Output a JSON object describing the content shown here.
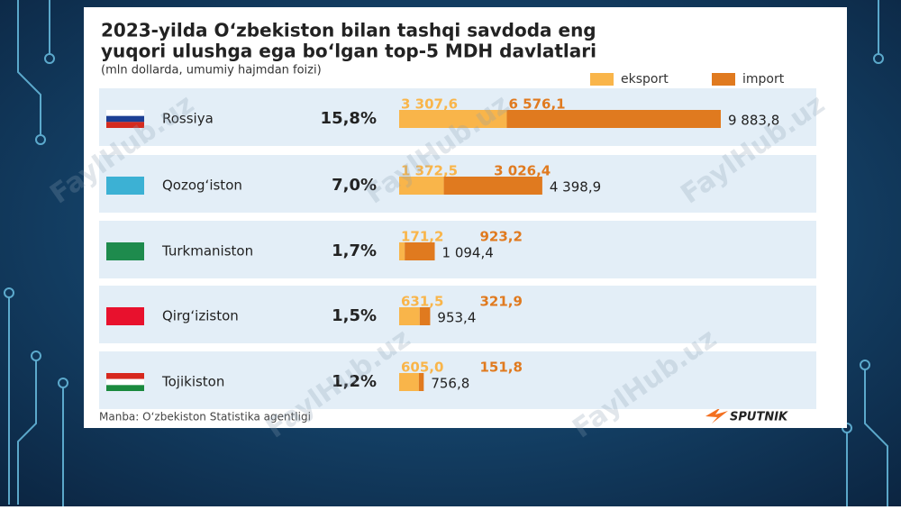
{
  "chart_data": {
    "type": "stacked-bar-horizontal",
    "title_lines": [
      "2023-yilda O‘zbekiston bilan tashqi savdoda eng",
      "yuqori ulushga ega bo‘lgan top-5 MDH davlatlari"
    ],
    "subtitle": "(mln dollarda, umumiy hajmdan foizi)",
    "categories": [
      "Rossiya",
      "Qozog‘iston",
      "Turkmaniston",
      "Qirg‘iziston",
      "Tojikiston"
    ],
    "share_labels": [
      "15,8%",
      "7,0%",
      "1,7%",
      "1,5%",
      "1,2%"
    ],
    "series": [
      {
        "name": "eksport",
        "color": "#f9b54a",
        "values": [
          3307.6,
          1372.5,
          171.2,
          631.5,
          605.0
        ],
        "value_labels": [
          "3 307,6",
          "1 372,5",
          "171,2",
          "631,5",
          "605,0"
        ]
      },
      {
        "name": "import",
        "color": "#e07a1f",
        "values": [
          6576.1,
          3026.4,
          923.2,
          321.9,
          151.8
        ],
        "value_labels": [
          "6 576,1",
          "3 026,4",
          "923,2",
          "321,9",
          "151,8"
        ]
      }
    ],
    "totals": [
      9883.8,
      4398.9,
      1094.4,
      953.4,
      756.8
    ],
    "total_labels": [
      "9 883,8",
      "4 398,9",
      "1 094,4",
      "953,4",
      "756,8"
    ],
    "source": "Manba: O‘zbekiston Statistika agentligi",
    "logo": "SPUTNIK",
    "watermark": "FaylHub.uz"
  }
}
